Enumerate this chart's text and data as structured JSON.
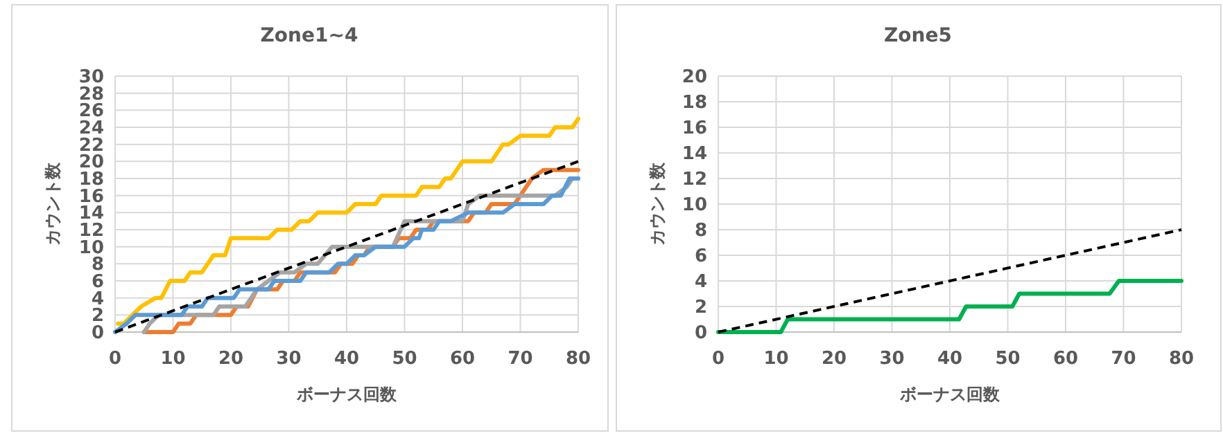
{
  "chart_data": [
    {
      "type": "line",
      "title": "Zone1~4",
      "xlabel": "ボーナス回数",
      "ylabel": "カウント数",
      "xlim": [
        0,
        80
      ],
      "ylim": [
        0,
        30
      ],
      "xticks": [
        0,
        10,
        20,
        30,
        40,
        50,
        60,
        70,
        80
      ],
      "yticks": [
        0,
        2,
        4,
        6,
        8,
        10,
        12,
        14,
        16,
        18,
        20,
        22,
        24,
        26,
        28,
        30
      ],
      "grid": true,
      "marker": "none",
      "series": [
        {
          "color": "#ffc000",
          "x": [
            0.5,
            1.5,
            3,
            4.5,
            7,
            8,
            9.5,
            12,
            13,
            15,
            16,
            17,
            19,
            20,
            26.5,
            28,
            30.5,
            32,
            33.5,
            35,
            40,
            41.5,
            45,
            46,
            52,
            53,
            56,
            57,
            58,
            60,
            65,
            67,
            68,
            70,
            75,
            76,
            79,
            80
          ],
          "values": [
            1,
            1,
            2,
            3,
            4,
            4,
            6,
            6,
            7,
            7,
            8,
            9,
            9,
            11,
            11,
            12,
            12,
            13,
            13,
            14,
            14,
            15,
            15,
            16,
            16,
            17,
            17,
            18,
            18,
            20,
            20,
            22,
            22,
            23,
            23,
            24,
            24,
            25
          ]
        },
        {
          "color": "#ed7d31",
          "x": [
            5,
            10,
            11,
            13,
            14,
            20,
            21,
            23,
            24.5,
            28,
            29,
            31,
            32,
            38,
            39,
            41,
            42,
            43,
            44,
            48,
            49,
            51,
            52,
            54,
            55,
            61,
            62,
            64,
            65,
            69,
            70,
            72,
            74,
            80
          ],
          "values": [
            0,
            0,
            1,
            1,
            2,
            2,
            3,
            3,
            5,
            5,
            6,
            6,
            7,
            7,
            8,
            8,
            9,
            9,
            10,
            10,
            11,
            11,
            12,
            12,
            13,
            13,
            14,
            14,
            15,
            15,
            16,
            18,
            19,
            19
          ]
        },
        {
          "color": "#a5a5a5",
          "x": [
            5,
            6,
            7.5,
            17,
            18,
            22.5,
            24.5,
            26.5,
            28.5,
            31,
            33,
            35,
            37.5,
            48,
            50,
            60,
            61,
            63,
            76,
            78,
            79,
            80
          ],
          "values": [
            0,
            1,
            2,
            2,
            3,
            3,
            5,
            6,
            7,
            7,
            8,
            8,
            10,
            10,
            13,
            13,
            15,
            16,
            16,
            17,
            18,
            18
          ]
        },
        {
          "color": "#5b9bd5",
          "x": [
            0,
            2,
            3.5,
            11.5,
            12.5,
            15,
            16,
            20.5,
            21.5,
            26.5,
            27.5,
            32,
            33,
            37,
            38.5,
            40,
            41.5,
            43,
            45,
            50,
            51.5,
            52.5,
            53,
            55,
            56,
            58,
            61,
            67,
            69,
            74,
            75.5,
            77,
            78.5,
            80
          ],
          "values": [
            0,
            1,
            2,
            2,
            3,
            3,
            4,
            4,
            5,
            5,
            6,
            6,
            7,
            7,
            8,
            8,
            9,
            9,
            10,
            10,
            11,
            11,
            12,
            12,
            13,
            13,
            14,
            14,
            15,
            15,
            16,
            16,
            18,
            18
          ]
        },
        {
          "color": "#000000",
          "line_style": "dashed",
          "x": [
            0,
            10,
            20,
            30,
            40,
            50,
            60,
            70,
            80
          ],
          "values": [
            0,
            2.5,
            5,
            7.5,
            10,
            12.5,
            15,
            17.5,
            20
          ]
        }
      ]
    },
    {
      "type": "line",
      "title": "Zone5",
      "xlabel": "ボーナス回数",
      "ylabel": "カウント数",
      "xlim": [
        0,
        80
      ],
      "ylim": [
        0,
        20
      ],
      "xticks": [
        0,
        10,
        20,
        30,
        40,
        50,
        60,
        70,
        80
      ],
      "yticks": [
        0,
        2,
        4,
        6,
        8,
        10,
        12,
        14,
        16,
        18,
        20
      ],
      "grid": true,
      "marker": "none",
      "series": [
        {
          "color": "#00b050",
          "x": [
            0,
            10.8,
            12,
            41.6,
            42.8,
            50.8,
            52,
            67.6,
            69.2,
            80
          ],
          "values": [
            0,
            0,
            1,
            1,
            2,
            2,
            3,
            3,
            4,
            4
          ]
        },
        {
          "color": "#000000",
          "line_style": "dashed",
          "x": [
            0,
            80
          ],
          "values": [
            0,
            8
          ]
        }
      ]
    }
  ]
}
